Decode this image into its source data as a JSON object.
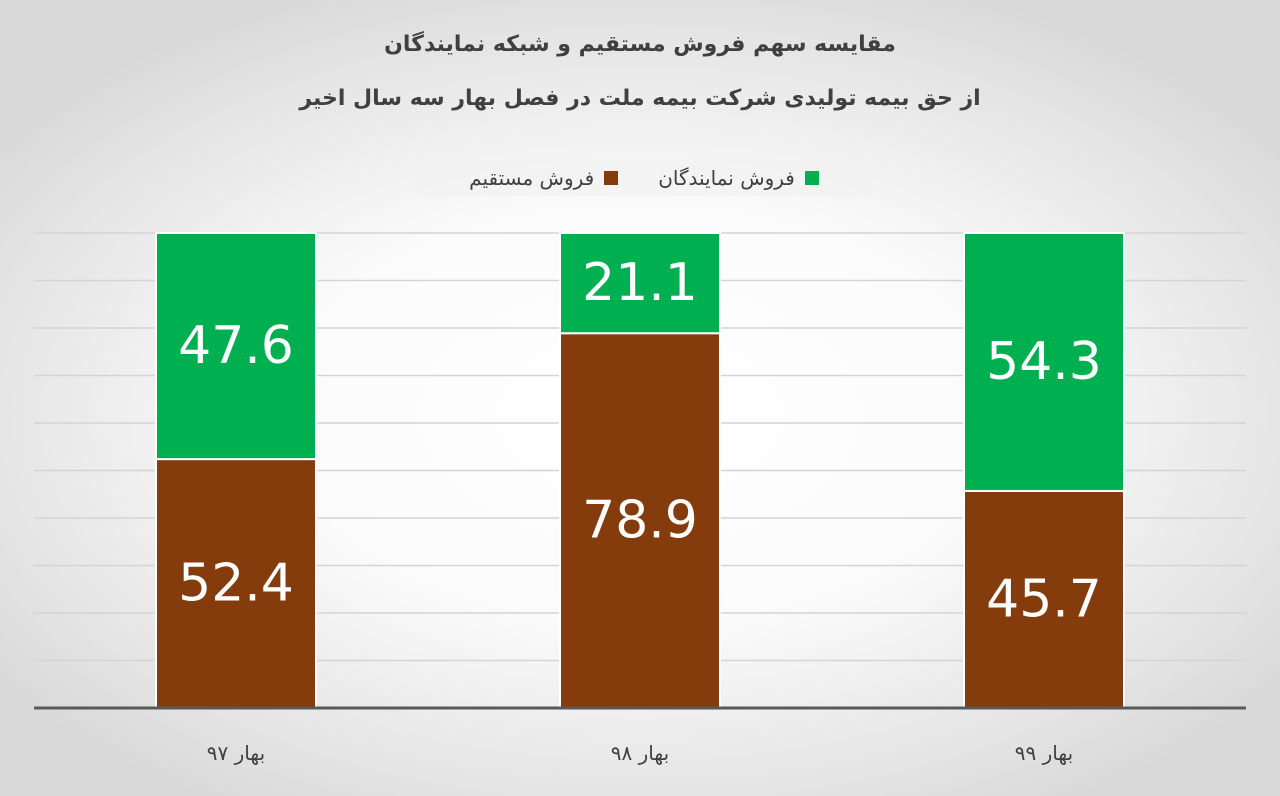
{
  "chart_data": {
    "type": "bar",
    "stacked": true,
    "title": "مقایسه سهم فروش مستقیم و شبکه نمایندگان",
    "subtitle": "از حق بیمه تولیدی شرکت بیمه ملت در فصل بهار سه سال اخیر",
    "categories": [
      "بهار ۹۷",
      "بهار ۹۸",
      "بهار ۹۹"
    ],
    "series": [
      {
        "name": "فروش مستقیم",
        "color": "#843C0C",
        "values": [
          52.4,
          78.9,
          45.7
        ]
      },
      {
        "name": "فروش نمایندگان",
        "color": "#00B050",
        "values": [
          47.6,
          21.1,
          54.3
        ]
      }
    ],
    "data_labels": {
      "فروش مستقیم": [
        "52.4",
        "78.9",
        "45.7"
      ],
      "فروش نمایندگان": [
        "47.6",
        "21.1",
        "54.3"
      ]
    },
    "ylim": [
      0,
      100
    ],
    "grid": true,
    "legend_position": "top"
  }
}
